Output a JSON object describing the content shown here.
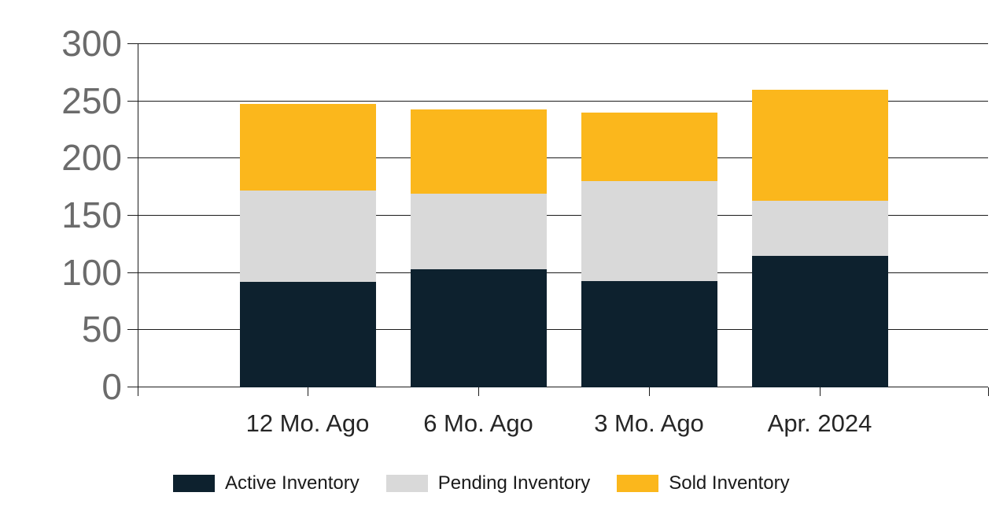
{
  "chart_data": {
    "type": "bar",
    "stacked": true,
    "title": "",
    "categories": [
      "12 Mo. Ago",
      "6 Mo. Ago",
      "3 Mo. Ago",
      "Apr. 2024"
    ],
    "series": [
      {
        "name": "Active Inventory",
        "color": "#0d212e",
        "values": [
          92,
          103,
          93,
          115
        ]
      },
      {
        "name": "Pending Inventory",
        "color": "#d9d9d9",
        "values": [
          80,
          66,
          87,
          48
        ]
      },
      {
        "name": "Sold Inventory",
        "color": "#fbb71c",
        "values": [
          76,
          74,
          60,
          97
        ]
      }
    ],
    "stack_totals": [
      248,
      243,
      240,
      260
    ],
    "ylim": [
      0,
      300
    ],
    "ytick_interval": 50,
    "ytick_labels": [
      "0",
      "50",
      "100",
      "150",
      "200",
      "250",
      "300"
    ],
    "grid": "horizontal",
    "legend_position": "bottom",
    "colors": {
      "background": "#ffffff",
      "grid_line": "#1c1c1c",
      "y_tick_label": "#6b6b6b",
      "category_label": "#262626",
      "legend_label": "#1a1a1a"
    }
  }
}
